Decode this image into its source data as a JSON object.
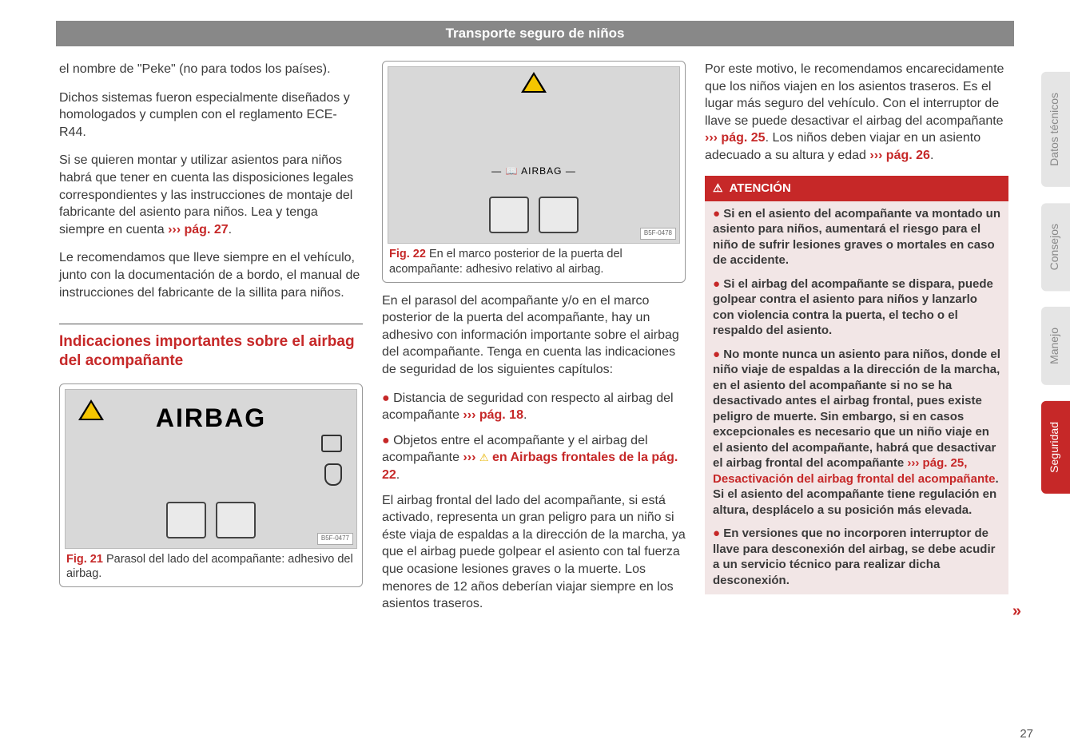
{
  "header": {
    "title": "Transporte seguro de niños"
  },
  "col1": {
    "p1": "el nombre de \"Peke\" (no para todos los países).",
    "p2": "Dichos sistemas fueron especialmente diseñados y homologados y cumplen con el reglamento ECE-R44.",
    "p3": "Si se quieren montar y utilizar asientos para niños habrá que tener en cuenta las disposiciones legales correspondientes y las instrucciones de montaje del fabricante del asiento para niños. Lea y tenga siempre en cuenta ",
    "p3_ref": "››› pág. 27",
    "p4": "Le recomendamos que lleve siempre en el vehículo, junto con la documentación de a bordo, el manual de instrucciones del fabricante de la sillita para niños.",
    "heading": "Indicaciones importantes sobre el airbag del acompañante",
    "fig21_airbag": "AIRBAG",
    "fig21_tag": "B5F-0477",
    "fig21_label": "Fig. 21",
    "fig21_caption": "  Parasol del lado del acompañante: adhesivo del airbag."
  },
  "col2": {
    "fig22_airbag": "AIRBAG",
    "fig22_tag": "B5F-0478",
    "fig22_label": "Fig. 22",
    "fig22_caption": "  En el marco posterior de la puerta del acompañante: adhesivo relativo al airbag.",
    "p1": "En el parasol del acompañante y/o en el marco posterior de la puerta del acompañante, hay un adhesivo con información importante sobre el airbag del acompañante. Tenga en cuenta las indicaciones de seguridad de los siguientes capítulos:",
    "b1a": "Distancia de seguridad con respecto al airbag del acompañante ",
    "b1_ref": "››› pág. 18",
    "b2a": "Objetos entre el acompañante y el airbag del acompañante ",
    "b2_arrows": "››› ",
    "b2_ref": " en Airbags frontales de la pág. 22",
    "p2": "El airbag frontal del lado del acompañante, si está activado, representa un gran peligro para un niño si éste viaja de espaldas a la dirección de la marcha, ya que el airbag puede golpear el asiento con tal fuerza que ocasione lesiones graves o la muerte. Los menores de 12 años deberían viajar siempre en los asientos traseros."
  },
  "col3": {
    "p1a": "Por este motivo, le recomendamos encarecidamente que los niños viajen en los asientos traseros. Es el lugar más seguro del vehículo. Con el interruptor de llave se puede desactivar el airbag del acompañante ",
    "p1_ref1": "››› pág. 25",
    "p1b": ". Los niños deben viajar en un asiento adecuado a su altura y edad ",
    "p1_ref2": "››› pág. 26",
    "attention_title": "ATENCIÓN",
    "a1": "Si en el asiento del acompañante va montado un asiento para niños, aumentará el riesgo para el niño de sufrir lesiones graves o mortales en caso de accidente.",
    "a2": "Si el airbag del acompañante se dispara, puede golpear contra el asiento para niños y lanzarlo con violencia contra la puerta, el techo o el respaldo del asiento.",
    "a3a": "No monte nunca un asiento para niños, donde el niño viaje de espaldas a la dirección de la marcha, en el asiento del acompañante si no se ha desactivado antes el airbag frontal, pues existe peligro de muerte. Sin embargo, si en casos excepcionales es necesario que un niño viaje en el asiento del acompañante, habrá que desactivar el airbag frontal del acompañante ",
    "a3_ref": "››› pág. 25, Desactivación del airbag frontal del acompañante",
    "a3b": ". Si el asiento del acompañante tiene regulación en altura, desplácelo a su posición más elevada.",
    "a4": "En versiones que no incorporen interruptor de llave para desconexión del airbag, se debe acudir a un servicio técnico para realizar dicha desconexión."
  },
  "tabs": {
    "t1": "Datos técnicos",
    "t2": "Consejos",
    "t3": "Manejo",
    "t4": "Seguridad"
  },
  "page_number": "27"
}
